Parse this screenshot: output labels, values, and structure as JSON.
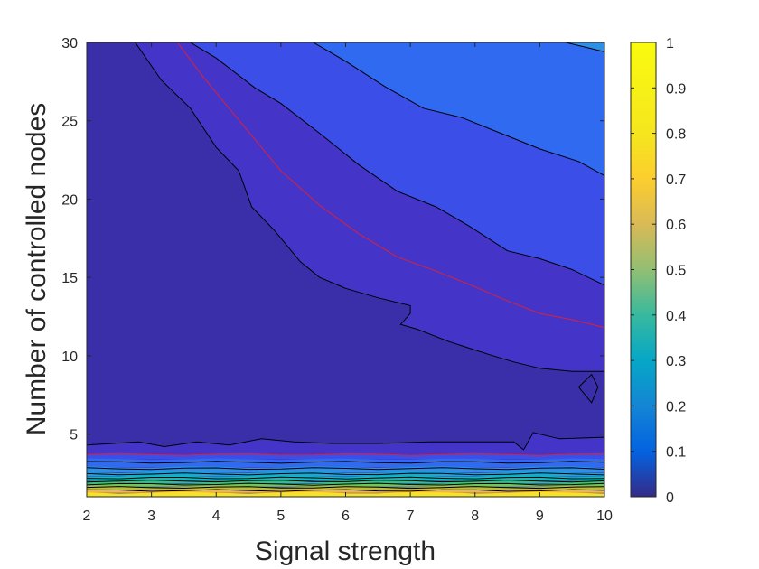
{
  "chart_data": {
    "type": "contour",
    "xlabel": "Signal strength",
    "ylabel": "Number of controlled nodes",
    "xlim": [
      2,
      10
    ],
    "ylim": [
      1,
      30
    ],
    "x_ticks": [
      "2",
      "3",
      "4",
      "5",
      "6",
      "7",
      "8",
      "9",
      "10"
    ],
    "y_ticks": [
      "5",
      "10",
      "15",
      "20",
      "25",
      "30"
    ],
    "colorbar": {
      "range": [
        0,
        1
      ],
      "ticks": [
        "0",
        "0.1",
        "0.2",
        "0.3",
        "0.4",
        "0.5",
        "0.6",
        "0.7",
        "0.8",
        "0.9",
        "1"
      ],
      "colormap": "parula"
    },
    "highlight_level_color": "#d9223a",
    "contour_line_color": "#000000",
    "bands": [
      {
        "level": 0.0,
        "color": "#3a2fa8"
      },
      {
        "level": 0.05,
        "color": "#4435c8"
      },
      {
        "level": 0.1,
        "color": "#3b4ee8"
      },
      {
        "level": 0.2,
        "color": "#2f6af0"
      },
      {
        "level": 0.3,
        "color": "#2d8fe6"
      },
      {
        "level": 0.4,
        "color": "#21b0d8"
      }
    ],
    "contours": [
      {
        "level": 0.05,
        "points": [
          [
            2,
            4.3
          ],
          [
            2.8,
            4.5
          ],
          [
            3.2,
            4.2
          ],
          [
            3.7,
            4.5
          ],
          [
            4.2,
            4.3
          ],
          [
            4.7,
            4.7
          ],
          [
            5.2,
            4.5
          ],
          [
            5.8,
            4.4
          ],
          [
            6.5,
            4.4
          ],
          [
            7.3,
            4.5
          ],
          [
            8,
            4.5
          ],
          [
            8.6,
            4.5
          ],
          [
            8.75,
            4.0
          ],
          [
            8.9,
            5.1
          ],
          [
            9.3,
            4.7
          ],
          [
            10,
            4.8
          ]
        ]
      },
      {
        "level": 0.05,
        "points": [
          [
            2.75,
            30
          ],
          [
            3.15,
            27.6
          ],
          [
            3.6,
            25.8
          ],
          [
            4.0,
            23.3
          ],
          [
            4.35,
            21.8
          ],
          [
            4.55,
            19.5
          ],
          [
            4.9,
            18.0
          ],
          [
            5.3,
            16.0
          ],
          [
            5.6,
            15.0
          ],
          [
            6.0,
            14.3
          ],
          [
            6.5,
            13.7
          ],
          [
            7.0,
            13.2
          ],
          [
            7.0,
            12.7
          ],
          [
            6.85,
            12.0
          ],
          [
            7.1,
            11.7
          ],
          [
            7.6,
            10.9
          ],
          [
            8.2,
            10.1
          ],
          [
            8.6,
            9.6
          ],
          [
            9.0,
            9.2
          ],
          [
            9.5,
            9.0
          ],
          [
            10,
            9.0
          ]
        ]
      },
      {
        "level": 0.1,
        "points": [
          [
            3.6,
            30
          ],
          [
            4.0,
            29.0
          ],
          [
            4.6,
            27.1
          ],
          [
            5.0,
            26.1
          ],
          [
            5.6,
            24.2
          ],
          [
            6.2,
            22.2
          ],
          [
            6.8,
            20.5
          ],
          [
            7.4,
            19.5
          ],
          [
            7.9,
            18.3
          ],
          [
            8.5,
            16.7
          ],
          [
            9.0,
            16.2
          ],
          [
            9.5,
            15.5
          ],
          [
            10,
            14.5
          ]
        ]
      },
      {
        "level": 0.15,
        "points": [
          [
            3.4,
            30
          ],
          [
            3.8,
            27.8
          ],
          [
            4.4,
            24.8
          ],
          [
            5.0,
            21.8
          ],
          [
            5.6,
            19.6
          ],
          [
            6.2,
            17.8
          ],
          [
            6.8,
            16.3
          ],
          [
            7.4,
            15.4
          ],
          [
            8.0,
            14.4
          ],
          [
            8.5,
            13.5
          ],
          [
            9.0,
            12.7
          ],
          [
            9.5,
            12.3
          ],
          [
            10,
            11.8
          ]
        ]
      },
      {
        "level": 0.2,
        "points": [
          [
            5.5,
            30
          ],
          [
            6.0,
            28.8
          ],
          [
            6.6,
            27.2
          ],
          [
            7.2,
            25.8
          ],
          [
            7.8,
            25.2
          ],
          [
            8.4,
            24.2
          ],
          [
            9.0,
            23.2
          ],
          [
            9.6,
            22.4
          ],
          [
            10,
            21.5
          ]
        ]
      },
      {
        "level": 0.3,
        "points": [
          [
            9.4,
            30
          ],
          [
            9.8,
            29.6
          ],
          [
            10,
            29.4
          ]
        ]
      },
      {
        "level": 0.05,
        "points": [
          [
            9.6,
            8.0
          ],
          [
            9.8,
            8.8
          ],
          [
            9.9,
            8.0
          ],
          [
            9.8,
            7.0
          ],
          [
            9.6,
            8.0
          ]
        ]
      }
    ],
    "bottom_contours": [
      {
        "level": 0.15,
        "y": 3.7,
        "color": "#d9223a"
      },
      {
        "level": 0.2,
        "y": 3.2,
        "color": "#000000"
      },
      {
        "level": 0.3,
        "y": 2.8,
        "color": "#000000"
      },
      {
        "level": 0.4,
        "y": 2.45,
        "color": "#000000"
      },
      {
        "level": 0.5,
        "y": 2.2,
        "color": "#000000"
      },
      {
        "level": 0.6,
        "y": 2.0,
        "color": "#000000"
      },
      {
        "level": 0.7,
        "y": 1.8,
        "color": "#000000"
      },
      {
        "level": 0.8,
        "y": 1.6,
        "color": "#000000"
      },
      {
        "level": 0.9,
        "y": 1.4,
        "color": "#000000"
      }
    ],
    "bottom_bands": [
      {
        "from": 3.4,
        "to": 3.7,
        "color": "#3b4ee8"
      },
      {
        "from": 2.9,
        "to": 3.4,
        "color": "#2f6af0"
      },
      {
        "from": 2.55,
        "to": 2.9,
        "color": "#2d8fe6"
      },
      {
        "from": 2.3,
        "to": 2.55,
        "color": "#17a8d8"
      },
      {
        "from": 2.05,
        "to": 2.3,
        "color": "#0fbcbc"
      },
      {
        "from": 1.85,
        "to": 2.05,
        "color": "#2ac28c"
      },
      {
        "from": 1.65,
        "to": 1.85,
        "color": "#74c45c"
      },
      {
        "from": 1.45,
        "to": 1.65,
        "color": "#bdbd3a"
      },
      {
        "from": 1.25,
        "to": 1.45,
        "color": "#f3b935"
      },
      {
        "from": 1.0,
        "to": 1.25,
        "color": "#f6e22a"
      }
    ]
  }
}
